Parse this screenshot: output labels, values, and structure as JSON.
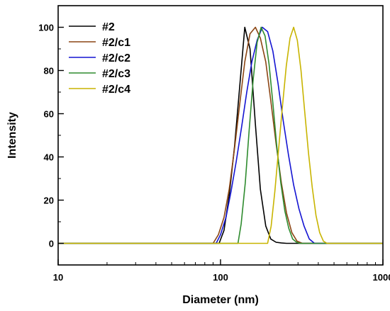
{
  "chart_data": {
    "type": "line",
    "title": "",
    "xlabel": "Diameter (nm)",
    "ylabel": "Intensity",
    "x_scale": "log",
    "xlim": [
      10,
      1000
    ],
    "ylim": [
      -10,
      110
    ],
    "x_ticks": [
      10,
      100,
      1000
    ],
    "x_tick_labels": [
      "10",
      "100",
      "1000"
    ],
    "y_ticks": [
      0,
      20,
      40,
      60,
      80,
      100
    ],
    "y_tick_labels": [
      "0",
      "20",
      "40",
      "60",
      "80",
      "100"
    ],
    "grid": false,
    "legend_position": "top-left",
    "series": [
      {
        "name": "#2",
        "color": "#000000",
        "x": [
          10,
          98,
          105,
          113,
          122,
          131,
          141,
          152,
          164,
          176,
          190,
          204,
          220,
          237,
          255,
          275,
          1000
        ],
        "y": [
          0,
          0,
          6,
          22,
          45,
          72,
          100,
          90,
          55,
          25,
          8,
          2,
          0.5,
          0.2,
          0,
          0,
          0
        ]
      },
      {
        "name": "#2/c1",
        "color": "#8B4513",
        "x": [
          10,
          90,
          97,
          105,
          113,
          122,
          131,
          141,
          152,
          164,
          176,
          190,
          204,
          220,
          237,
          255,
          275,
          296,
          319,
          1000
        ],
        "y": [
          0,
          0,
          4,
          12,
          25,
          44,
          64,
          84,
          97,
          100,
          95,
          84,
          66,
          46,
          28,
          14,
          5,
          1,
          0,
          0
        ]
      },
      {
        "name": "#2/c2",
        "color": "#1414d2",
        "x": [
          10,
          94,
          100,
          108,
          116,
          125,
          135,
          145,
          156,
          168,
          181,
          195,
          210,
          226,
          243,
          262,
          282,
          304,
          327,
          352,
          379,
          1000
        ],
        "y": [
          0,
          0,
          4,
          12,
          24,
          38,
          54,
          70,
          84,
          94,
          100,
          98,
          89,
          74,
          57,
          41,
          27,
          16,
          8,
          2,
          0,
          0
        ]
      },
      {
        "name": "#2/c3",
        "color": "#2e8b2e",
        "x": [
          10,
          128,
          134,
          142,
          150,
          159,
          168,
          178,
          188,
          199,
          210,
          222,
          235,
          249,
          263,
          278,
          294,
          310,
          1000
        ],
        "y": [
          0,
          0,
          9,
          28,
          52,
          76,
          93,
          100,
          96,
          83,
          65,
          45,
          28,
          15,
          7,
          2,
          0.5,
          0,
          0
        ]
      },
      {
        "name": "#2/c4",
        "color": "#c8b400",
        "x": [
          10,
          195,
          205,
          216,
          228,
          241,
          254,
          268,
          282,
          297,
          313,
          330,
          348,
          367,
          387,
          408,
          430,
          453,
          1000
        ],
        "y": [
          0,
          0,
          8,
          24,
          44,
          64,
          82,
          95,
          100,
          94,
          80,
          61,
          42,
          26,
          13,
          5,
          1,
          0,
          0
        ]
      }
    ]
  }
}
